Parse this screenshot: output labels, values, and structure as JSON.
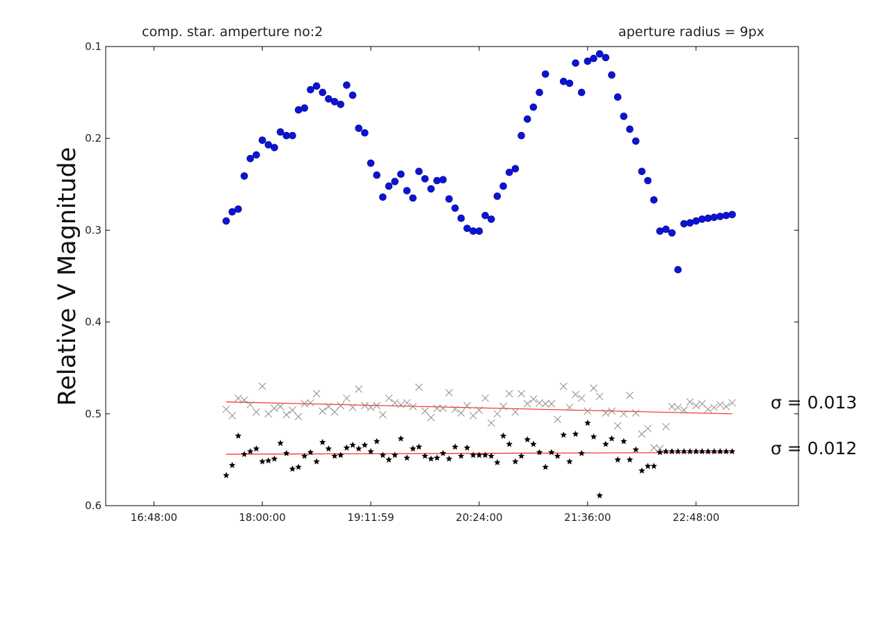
{
  "chart_data": {
    "type": "scatter",
    "title_left": "comp. star. amperture no:2",
    "title_right": "aperture radius = 9px",
    "ylabel": "Relative V Magnitude",
    "xlabel": "",
    "xlim": [
      "16:16:00",
      "23:56:00"
    ],
    "ylim": [
      0.1,
      0.6
    ],
    "y_inverted": true,
    "grid": false,
    "x_ticks": [
      "16:48:00",
      "18:00:00",
      "19:11:59",
      "20:24:00",
      "21:36:00",
      "22:48:00"
    ],
    "y_ticks": [
      "0.1",
      "0.2",
      "0.3",
      "0.4",
      "0.5",
      "0.6"
    ],
    "colors": {
      "target": "#0a14d8",
      "check": "#8c8c8c",
      "comp": "#000000",
      "fit": "#ff2020"
    },
    "annotations": [
      {
        "text": "σ = 0.013",
        "near_series": "check"
      },
      {
        "text": "σ = 0.012",
        "near_series": "comp"
      }
    ],
    "series": [
      {
        "marker": "circle",
        "x": [
          "17:36",
          "17:40",
          "17:44",
          "17:48",
          "17:52",
          "17:56",
          "18:00",
          "18:04",
          "18:08",
          "18:12",
          "18:16",
          "18:20",
          "18:24",
          "18:28",
          "18:32",
          "18:36",
          "18:40",
          "18:44",
          "18:48",
          "18:52",
          "18:56",
          "19:00",
          "19:04",
          "19:08",
          "19:12",
          "19:16",
          "19:20",
          "19:24",
          "19:28",
          "19:32",
          "19:36",
          "19:40",
          "19:44",
          "19:48",
          "19:52",
          "19:56",
          "20:00",
          "20:04",
          "20:08",
          "20:12",
          "20:16",
          "20:20",
          "20:24",
          "20:28",
          "20:32",
          "20:36",
          "20:40",
          "20:44",
          "20:48",
          "20:52",
          "20:56",
          "21:00",
          "21:04",
          "21:08",
          "21:20",
          "21:24",
          "21:28",
          "21:32",
          "21:36",
          "21:40",
          "21:44",
          "21:48",
          "21:52",
          "21:56",
          "22:00",
          "22:04",
          "22:08",
          "22:12",
          "22:16",
          "22:20",
          "22:24",
          "22:28",
          "22:32",
          "22:36",
          "22:40",
          "22:44",
          "22:48",
          "22:52",
          "22:56",
          "23:00",
          "23:04",
          "23:08",
          "23:12"
        ],
        "y": [
          0.29,
          0.28,
          0.277,
          0.241,
          0.222,
          0.218,
          0.202,
          0.207,
          0.21,
          0.193,
          0.197,
          0.197,
          0.169,
          0.167,
          0.147,
          0.143,
          0.15,
          0.157,
          0.16,
          0.163,
          0.142,
          0.153,
          0.189,
          0.194,
          0.227,
          0.24,
          0.264,
          0.252,
          0.247,
          0.239,
          0.257,
          0.265,
          0.236,
          0.244,
          0.255,
          0.246,
          0.245,
          0.266,
          0.276,
          0.287,
          0.298,
          0.301,
          0.301,
          0.284,
          0.288,
          0.263,
          0.252,
          0.237,
          0.233,
          0.197,
          0.179,
          0.166,
          0.15,
          0.13,
          0.138,
          0.14,
          0.118,
          0.15,
          0.116,
          0.113,
          0.108,
          0.112,
          0.131,
          0.155,
          0.176,
          0.19,
          0.203,
          0.236,
          0.246,
          0.267,
          0.301,
          0.299,
          0.303,
          0.343,
          0.293,
          0.292,
          0.29,
          0.288,
          0.287,
          0.286,
          0.285,
          0.284,
          0.283
        ]
      },
      {
        "marker": "x",
        "x": [
          "17:36",
          "17:40",
          "17:44",
          "17:48",
          "17:52",
          "17:56",
          "18:00",
          "18:04",
          "18:08",
          "18:12",
          "18:16",
          "18:20",
          "18:24",
          "18:28",
          "18:32",
          "18:36",
          "18:40",
          "18:44",
          "18:48",
          "18:52",
          "18:56",
          "19:00",
          "19:04",
          "19:08",
          "19:12",
          "19:16",
          "19:20",
          "19:24",
          "19:28",
          "19:32",
          "19:36",
          "19:40",
          "19:44",
          "19:48",
          "19:52",
          "19:56",
          "20:00",
          "20:04",
          "20:08",
          "20:12",
          "20:16",
          "20:20",
          "20:24",
          "20:28",
          "20:32",
          "20:36",
          "20:40",
          "20:44",
          "20:48",
          "20:52",
          "20:56",
          "21:00",
          "21:04",
          "21:08",
          "21:12",
          "21:16",
          "21:20",
          "21:24",
          "21:28",
          "21:32",
          "21:36",
          "21:40",
          "21:44",
          "21:48",
          "21:52",
          "21:56",
          "22:00",
          "22:04",
          "22:08",
          "22:12",
          "22:16",
          "22:20",
          "22:24",
          "22:28",
          "22:32",
          "22:36",
          "22:40",
          "22:44",
          "22:48",
          "22:52",
          "22:56",
          "23:00",
          "23:04",
          "23:08",
          "23:12"
        ],
        "y": [
          0.495,
          0.502,
          0.483,
          0.485,
          0.49,
          0.498,
          0.47,
          0.5,
          0.494,
          0.492,
          0.501,
          0.496,
          0.503,
          0.489,
          0.488,
          0.478,
          0.497,
          0.492,
          0.498,
          0.491,
          0.483,
          0.493,
          0.473,
          0.491,
          0.493,
          0.491,
          0.501,
          0.483,
          0.488,
          0.49,
          0.488,
          0.492,
          0.471,
          0.497,
          0.504,
          0.494,
          0.494,
          0.477,
          0.495,
          0.499,
          0.491,
          0.502,
          0.496,
          0.483,
          0.51,
          0.5,
          0.492,
          0.478,
          0.498,
          0.478,
          0.489,
          0.484,
          0.488,
          0.489,
          0.489,
          0.506,
          0.47,
          0.493,
          0.479,
          0.483,
          0.497,
          0.472,
          0.481,
          0.499,
          0.497,
          0.513,
          0.5,
          0.48,
          0.499,
          0.522,
          0.516,
          0.537,
          0.538,
          0.514,
          0.492,
          0.493,
          0.496,
          0.487,
          0.491,
          0.489,
          0.495,
          0.493,
          0.49,
          0.492,
          0.488
        ]
      },
      {
        "marker": "star",
        "x": [
          "17:36",
          "17:40",
          "17:44",
          "17:48",
          "17:52",
          "17:56",
          "18:00",
          "18:04",
          "18:08",
          "18:12",
          "18:16",
          "18:20",
          "18:24",
          "18:28",
          "18:32",
          "18:36",
          "18:40",
          "18:44",
          "18:48",
          "18:52",
          "18:56",
          "19:00",
          "19:04",
          "19:08",
          "19:12",
          "19:16",
          "19:20",
          "19:24",
          "19:28",
          "19:32",
          "19:36",
          "19:40",
          "19:44",
          "19:48",
          "19:52",
          "19:56",
          "20:00",
          "20:04",
          "20:08",
          "20:12",
          "20:16",
          "20:20",
          "20:24",
          "20:28",
          "20:32",
          "20:36",
          "20:40",
          "20:44",
          "20:48",
          "20:52",
          "20:56",
          "21:00",
          "21:04",
          "21:08",
          "21:12",
          "21:16",
          "21:20",
          "21:24",
          "21:28",
          "21:32",
          "21:36",
          "21:40",
          "21:44",
          "21:48",
          "21:52",
          "21:56",
          "22:00",
          "22:04",
          "22:08",
          "22:12",
          "22:16",
          "22:20",
          "22:24",
          "22:28",
          "22:32",
          "22:36",
          "22:40",
          "22:44",
          "22:48",
          "22:52",
          "22:56",
          "23:00",
          "23:04",
          "23:08",
          "23:12"
        ],
        "y": [
          0.567,
          0.556,
          0.524,
          0.544,
          0.541,
          0.538,
          0.552,
          0.551,
          0.549,
          0.532,
          0.543,
          0.56,
          0.558,
          0.546,
          0.542,
          0.552,
          0.531,
          0.538,
          0.546,
          0.545,
          0.537,
          0.534,
          0.538,
          0.534,
          0.541,
          0.53,
          0.545,
          0.55,
          0.545,
          0.527,
          0.548,
          0.538,
          0.536,
          0.546,
          0.549,
          0.548,
          0.543,
          0.549,
          0.536,
          0.546,
          0.537,
          0.545,
          0.545,
          0.545,
          0.546,
          0.553,
          0.524,
          0.533,
          0.552,
          0.546,
          0.528,
          0.533,
          0.542,
          0.558,
          0.542,
          0.546,
          0.523,
          0.552,
          0.522,
          0.543,
          0.51,
          0.525,
          0.589,
          0.533,
          0.527,
          0.55,
          0.53,
          0.55,
          0.539,
          0.562,
          0.557,
          0.557,
          0.542,
          0.541,
          0.541,
          0.541,
          0.541,
          0.541,
          0.541,
          0.541,
          0.541,
          0.541,
          0.541,
          0.541,
          0.541
        ]
      }
    ],
    "fits": [
      {
        "series_index": 1,
        "x": [
          "17:36",
          "23:12"
        ],
        "y": [
          0.487,
          0.5
        ]
      },
      {
        "series_index": 2,
        "x": [
          "17:36",
          "23:12"
        ],
        "y": [
          0.544,
          0.542
        ]
      }
    ]
  }
}
